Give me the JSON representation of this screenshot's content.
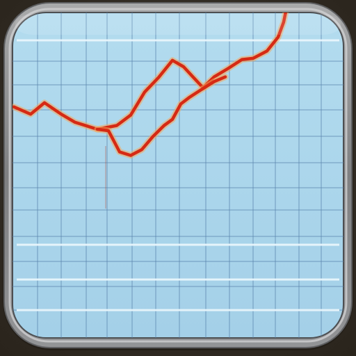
{
  "icon": {
    "name": "line-chart-app-icon",
    "frame_color": "#8e8f91",
    "screen_color": "#a9d4ea",
    "grid_color": "#5a84ad",
    "highlight_line_color": "#e9f6fc",
    "line_color": "#d62a14",
    "line_glow_color": "#f5a65a"
  },
  "chart_data": {
    "type": "line",
    "title": "",
    "xlabel": "",
    "ylabel": "",
    "grid": true,
    "xlim": [
      0,
      100
    ],
    "ylim": [
      0,
      100
    ],
    "series": [
      {
        "x": [
          0,
          6,
          11,
          17,
          22,
          30,
          37,
          42,
          47,
          52,
          57,
          61,
          64,
          68,
          72,
          77,
          82,
          86,
          91,
          95,
          97,
          98
        ],
        "y": [
          66.1,
          63.6,
          67.5,
          63.6,
          60.8,
          58.4,
          59.7,
          63.3,
          71.2,
          76.2,
          82.1,
          79.9,
          76.8,
          72.7,
          76.4,
          79.3,
          82.4,
          82.8,
          85.3,
          90.1,
          95.3,
          100
        ]
      },
      {
        "x": [
          30,
          34,
          38,
          42,
          46,
          50,
          54,
          57,
          60,
          63,
          67,
          72,
          76
        ],
        "y": [
          58.4,
          57.9,
          50.6,
          49.4,
          51.4,
          55.9,
          59.7,
          61.8,
          67.1,
          69.3,
          71.8,
          74.8,
          76.4
        ]
      }
    ]
  }
}
